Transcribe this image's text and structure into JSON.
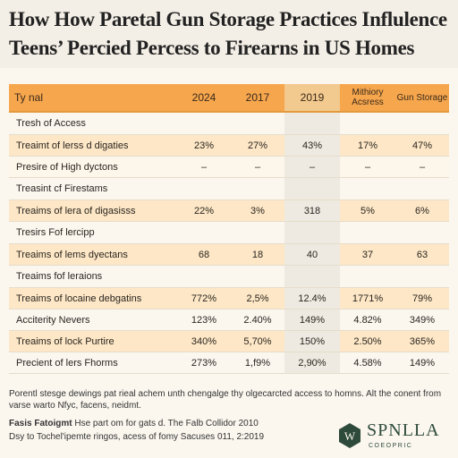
{
  "title": {
    "line1": "How How Paretal Gun Storage Practices Influlence",
    "line2": "Teens’ Percied Percess to Firearns in US Homes"
  },
  "table": {
    "headers": [
      "Ty nal",
      "2024",
      "2017",
      "2019",
      "Mithiory Acsress",
      "Gun Storage"
    ],
    "rows": [
      {
        "style": "section",
        "cells": [
          "Tresh of Access",
          "",
          "",
          "",
          "",
          ""
        ]
      },
      {
        "style": "band",
        "cells": [
          "Treaimt of lerss d digaties",
          "23%",
          "27%",
          "43%",
          "17%",
          "47%"
        ]
      },
      {
        "style": "light",
        "cells": [
          "Presire of High dyctons",
          "–",
          "–",
          "–",
          "–",
          "–"
        ]
      },
      {
        "style": "section",
        "cells": [
          "Treasint cf Firestams",
          "",
          "",
          "",
          "",
          ""
        ]
      },
      {
        "style": "band",
        "cells": [
          "Treaims of lera of digasisss",
          "22%",
          "3%",
          "318",
          "5%",
          "6%"
        ]
      },
      {
        "style": "section",
        "cells": [
          "Tresirs Fof lercipp",
          "",
          "",
          "",
          "",
          ""
        ]
      },
      {
        "style": "band",
        "cells": [
          "Treaims of lems dyectans",
          "68",
          "18",
          "40",
          "37",
          "63"
        ]
      },
      {
        "style": "section",
        "cells": [
          "Treaims fof leraions",
          "",
          "",
          "",
          "",
          ""
        ]
      },
      {
        "style": "band",
        "cells": [
          "Treaims of locaine debgatins",
          "772%",
          "2,5%",
          "12.4%",
          "1771%",
          "79%"
        ]
      },
      {
        "style": "plain",
        "cells": [
          "Acciterity Nevers",
          "123%",
          "2.40%",
          "149%",
          "4.82%",
          "349%"
        ]
      },
      {
        "style": "band",
        "cells": [
          "Treaims of lock Purtire",
          "340%",
          "5,70%",
          "150%",
          "2.50%",
          "365%"
        ]
      },
      {
        "style": "plain",
        "cells": [
          "Precient of lers Fhorms",
          "273%",
          "1,f9%",
          "2,90%",
          "4.58%",
          "149%"
        ]
      }
    ]
  },
  "footnote": "Porentl stesge dewings pat rieal achem unth chengalge thy olgecarcted access to homns. Alt the conent from varse warto Nfyc, facens, neidmt.",
  "source": {
    "label": "Fasis Fatoigmt",
    "line1_rest": " Hse part om for gats d. The Falb Collidor 2010",
    "line2": "Dsy to Tochel'ipemte ringos, acess of fomy Sacuses 011, 2:2019"
  },
  "logo": {
    "name": "SPNLLA",
    "sub": "COEOPRIC",
    "mark_letter": "W",
    "color": "#2e4a3a"
  },
  "colors": {
    "header_orange": "#f6a64d",
    "band_orange": "#fde7c6",
    "background": "#fbf7ef"
  }
}
